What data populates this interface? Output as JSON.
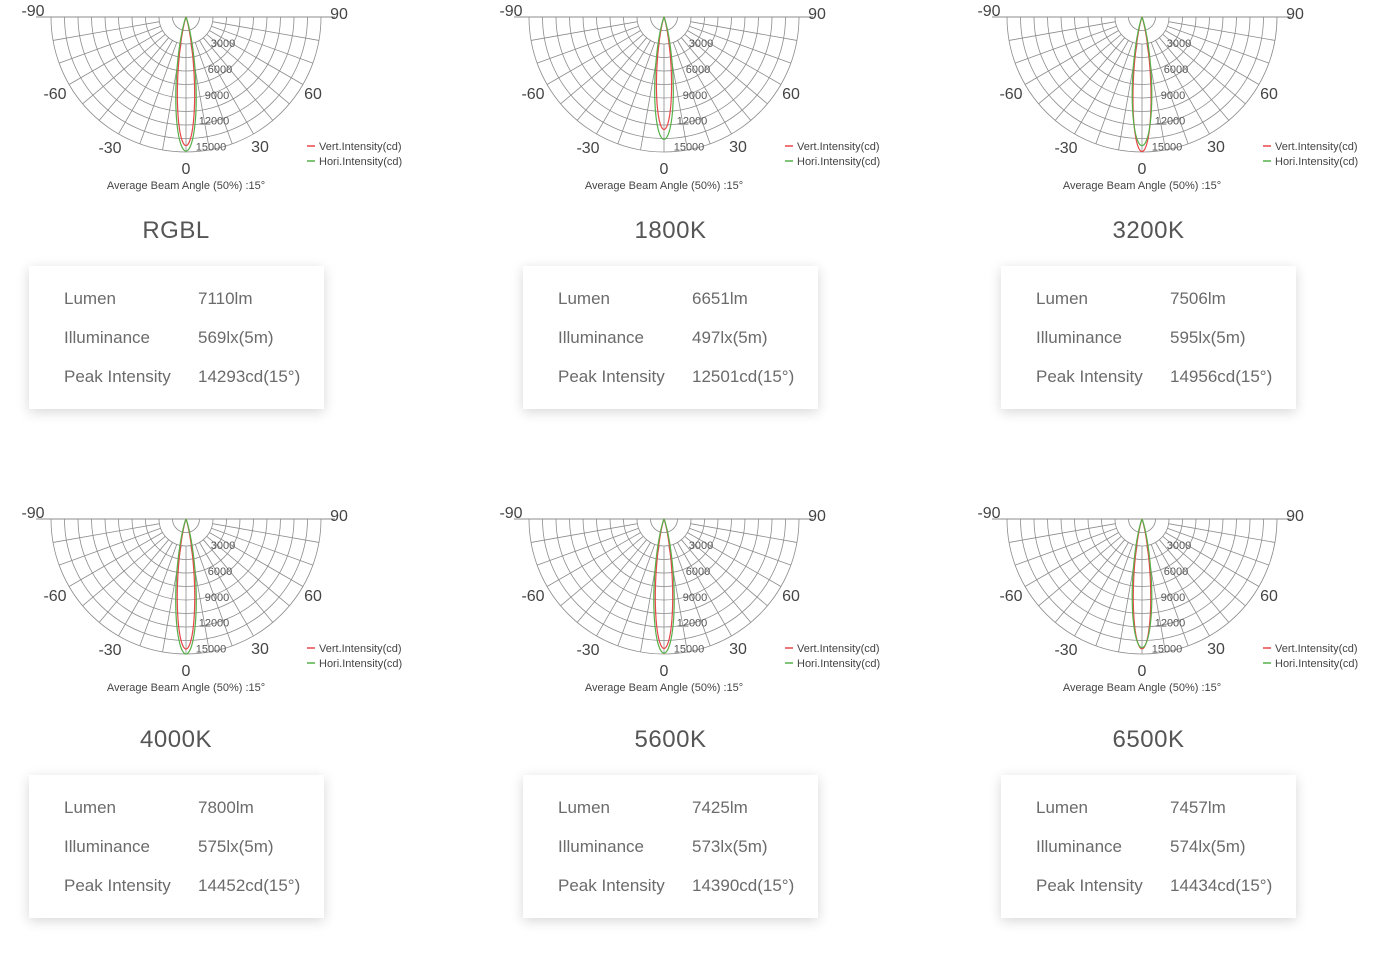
{
  "colors": {
    "vertical": "#e8474a",
    "horizontal": "#56b04a",
    "grid": "#8c8c8c",
    "text": "#555555"
  },
  "panels": [
    {
      "title": "RGBL",
      "chart_data": {
        "type": "polar",
        "angle_labels": [
          "-90",
          "-60",
          "-30",
          "0",
          "30",
          "60",
          "90"
        ],
        "radial_ticks": [
          "3000",
          "6000",
          "9000",
          "12000",
          "15000"
        ],
        "radial_max": 15000,
        "legend": [
          "Vert.Intensity(cd)",
          "Hori.Intensity(cd)"
        ],
        "caption": "Average Beam Angle (50%) :15°",
        "series": [
          {
            "name": "Vert.Intensity(cd)",
            "peak": 14293,
            "half_width_deg": 7.5
          },
          {
            "name": "Hori.Intensity(cd)",
            "peak": 14900,
            "half_width_deg": 8.5
          }
        ]
      },
      "specs": [
        {
          "label": "Lumen",
          "value": "7110lm"
        },
        {
          "label": "Illuminance",
          "value": "569lx(5m)"
        },
        {
          "label": "Peak Intensity",
          "value": "14293cd(15°)"
        }
      ]
    },
    {
      "title": "1800K",
      "chart_data": {
        "type": "polar",
        "angle_labels": [
          "-90",
          "-60",
          "-30",
          "0",
          "30",
          "60",
          "90"
        ],
        "radial_ticks": [
          "3000",
          "6000",
          "9000",
          "12000",
          "15000"
        ],
        "radial_max": 15000,
        "legend": [
          "Vert.Intensity(cd)",
          "Hori.Intensity(cd)"
        ],
        "caption": "Average Beam Angle (50%) :15°",
        "series": [
          {
            "name": "Vert.Intensity(cd)",
            "peak": 12501,
            "half_width_deg": 7.5
          },
          {
            "name": "Hori.Intensity(cd)",
            "peak": 13600,
            "half_width_deg": 8.5
          }
        ]
      },
      "specs": [
        {
          "label": "Lumen",
          "value": "6651lm"
        },
        {
          "label": "Illuminance",
          "value": "497lx(5m)"
        },
        {
          "label": "Peak Intensity",
          "value": "12501cd(15°)"
        }
      ]
    },
    {
      "title": "3200K",
      "chart_data": {
        "type": "polar",
        "angle_labels": [
          "-90",
          "-60",
          "-30",
          "0",
          "30",
          "60",
          "90"
        ],
        "radial_ticks": [
          "3000",
          "6000",
          "9000",
          "12000",
          "15000"
        ],
        "radial_max": 15000,
        "legend": [
          "Vert.Intensity(cd)",
          "Hori.Intensity(cd)"
        ],
        "caption": "Average Beam Angle (50%) :15°",
        "series": [
          {
            "name": "Vert.Intensity(cd)",
            "peak": 14956,
            "half_width_deg": 7.5
          },
          {
            "name": "Hori.Intensity(cd)",
            "peak": 14300,
            "half_width_deg": 8.5
          }
        ]
      },
      "specs": [
        {
          "label": "Lumen",
          "value": "7506lm"
        },
        {
          "label": "Illuminance",
          "value": "595lx(5m)"
        },
        {
          "label": "Peak Intensity",
          "value": "14956cd(15°)"
        }
      ]
    },
    {
      "title": "4000K",
      "chart_data": {
        "type": "polar",
        "angle_labels": [
          "-90",
          "-60",
          "-30",
          "0",
          "30",
          "60",
          "90"
        ],
        "radial_ticks": [
          "3000",
          "6000",
          "9000",
          "12000",
          "15000"
        ],
        "radial_max": 15000,
        "legend": [
          "Vert.Intensity(cd)",
          "Hori.Intensity(cd)"
        ],
        "caption": "Average Beam Angle (50%) :15°",
        "series": [
          {
            "name": "Vert.Intensity(cd)",
            "peak": 14452,
            "half_width_deg": 7.5
          },
          {
            "name": "Hori.Intensity(cd)",
            "peak": 15000,
            "half_width_deg": 8.5
          }
        ]
      },
      "specs": [
        {
          "label": "Lumen",
          "value": "7800lm"
        },
        {
          "label": "Illuminance",
          "value": "575lx(5m)"
        },
        {
          "label": "Peak Intensity",
          "value": "14452cd(15°)"
        }
      ]
    },
    {
      "title": "5600K",
      "chart_data": {
        "type": "polar",
        "angle_labels": [
          "-90",
          "-60",
          "-30",
          "0",
          "30",
          "60",
          "90"
        ],
        "radial_ticks": [
          "3000",
          "6000",
          "9000",
          "12000",
          "15000"
        ],
        "radial_max": 15000,
        "legend": [
          "Vert.Intensity(cd)",
          "Hori.Intensity(cd)"
        ],
        "caption": "Average Beam Angle (50%) :15°",
        "series": [
          {
            "name": "Vert.Intensity(cd)",
            "peak": 14390,
            "half_width_deg": 7.5
          },
          {
            "name": "Hori.Intensity(cd)",
            "peak": 14900,
            "half_width_deg": 8.5
          }
        ]
      },
      "specs": [
        {
          "label": "Lumen",
          "value": "7425lm"
        },
        {
          "label": "Illuminance",
          "value": "573lx(5m)"
        },
        {
          "label": "Peak Intensity",
          "value": "14390cd(15°)"
        }
      ]
    },
    {
      "title": "6500K",
      "chart_data": {
        "type": "polar",
        "angle_labels": [
          "-90",
          "-60",
          "-30",
          "0",
          "30",
          "60",
          "90"
        ],
        "radial_ticks": [
          "3000",
          "6000",
          "9000",
          "12000",
          "15000"
        ],
        "radial_max": 15000,
        "legend": [
          "Vert.Intensity(cd)",
          "Hori.Intensity(cd)"
        ],
        "caption": "Average Beam Angle (50%) :15°",
        "series": [
          {
            "name": "Vert.Intensity(cd)",
            "peak": 14434,
            "half_width_deg": 7.5
          },
          {
            "name": "Hori.Intensity(cd)",
            "peak": 14300,
            "half_width_deg": 8.5
          }
        ]
      },
      "specs": [
        {
          "label": "Lumen",
          "value": "7457lm"
        },
        {
          "label": "Illuminance",
          "value": "574lx(5m)"
        },
        {
          "label": "Peak Intensity",
          "value": "14434cd(15°)"
        }
      ]
    }
  ]
}
